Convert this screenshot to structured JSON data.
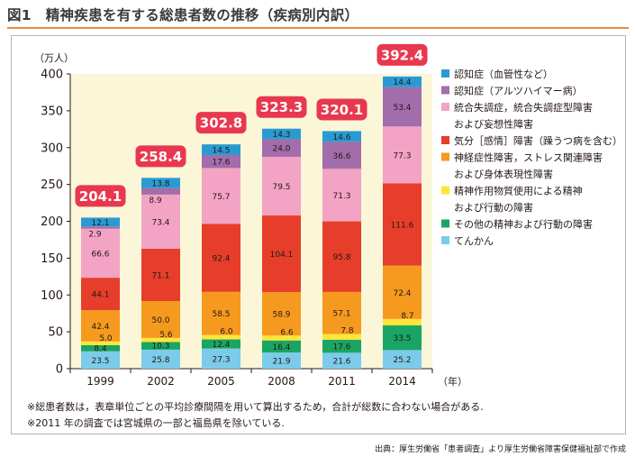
{
  "figure_label": "図1",
  "title": "精神疾患を有する総患者数の推移（疾病別内訳）",
  "notes": [
    "※総患者数は，表章単位ごとの平均診療間隔を用いて算出するため，合計が総数に合わない場合がある.",
    "※2011 年の調査では宮城県の一部と福島県を除いている."
  ],
  "source": "出典：厚生労働省「患者調査」より厚生労働省障害保健福祉部で作成",
  "colors": {
    "plot_bg": "#fbf6d8",
    "total_label_bg": "#e8384f",
    "series": [
      "#7ccbea",
      "#1aa564",
      "#fde63b",
      "#f59a1e",
      "#e63e2a",
      "#f3a3c4",
      "#a36cab",
      "#2a9bd2"
    ]
  },
  "chart_data": {
    "type": "bar",
    "stacked": true,
    "categories": [
      "1999",
      "2002",
      "2005",
      "2008",
      "2011",
      "2014"
    ],
    "xlabel": "（年）",
    "ylabel": "（万人）",
    "ylim": [
      0,
      400
    ],
    "yticks": [
      "0",
      "50",
      "100",
      "150",
      "200",
      "250",
      "300",
      "350",
      "400"
    ],
    "grid": false,
    "legend_position": "right",
    "totals": [
      "204.1",
      "258.4",
      "302.8",
      "323.3",
      "320.1",
      "392.4"
    ],
    "series": [
      {
        "name": "てんかん",
        "values": [
          23.5,
          25.8,
          27.3,
          21.9,
          21.6,
          25.2
        ],
        "labels": [
          "23.5",
          "25.8",
          "27.3",
          "21.9",
          "21.6",
          "25.2"
        ]
      },
      {
        "name": "その他の精神および行動の障害",
        "values": [
          8.4,
          10.3,
          12.4,
          16.4,
          17.6,
          33.5
        ],
        "labels": [
          "8.4",
          "10.3",
          "12.4",
          "16.4",
          "17.6",
          "33.5"
        ]
      },
      {
        "name": "精神作用物質使用による精神\nおよび行動の障害",
        "values": [
          5.0,
          5.6,
          6.0,
          6.6,
          7.8,
          8.7
        ],
        "labels": [
          "5.0",
          "5.6",
          "6.0",
          "6.6",
          "7.8",
          "8.7"
        ]
      },
      {
        "name": "神経症性障害，ストレス関連障害\nおよび身体表現性障害",
        "values": [
          42.4,
          50.0,
          58.5,
          58.9,
          57.1,
          72.4
        ],
        "labels": [
          "42.4",
          "50.0",
          "58.5",
          "58.9",
          "57.1",
          "72.4"
        ]
      },
      {
        "name": "気分［感情］障害（躁うつ病を含む）",
        "values": [
          44.1,
          71.1,
          92.4,
          104.1,
          95.8,
          111.6
        ],
        "labels": [
          "44.1",
          "71.1",
          "92.4",
          "104.1",
          "95.8",
          "111.6"
        ]
      },
      {
        "name": "統合失調症，統合失調症型障害\nおよび妄想性障害",
        "values": [
          66.6,
          73.4,
          75.7,
          79.5,
          71.3,
          77.3
        ],
        "labels": [
          "66.6",
          "73.4",
          "75.7",
          "79.5",
          "71.3",
          "77.3"
        ]
      },
      {
        "name": "認知症（アルツハイマー病）",
        "values": [
          2.9,
          8.9,
          17.6,
          24.0,
          36.6,
          53.4
        ],
        "labels": [
          "2.9",
          "8.9",
          "17.6",
          "24.0",
          "36.6",
          "53.4"
        ]
      },
      {
        "name": "認知症（血管性など）",
        "values": [
          12.1,
          13.8,
          14.5,
          14.3,
          14.6,
          14.4
        ],
        "labels": [
          "12.1",
          "13.8",
          "14.5",
          "14.3",
          "14.6",
          "14.4"
        ]
      }
    ]
  }
}
